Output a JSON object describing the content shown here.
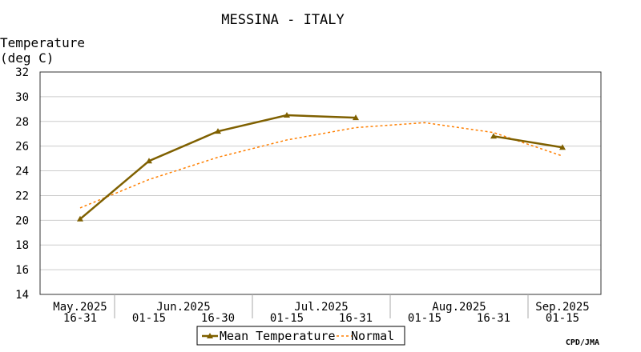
{
  "chart_data": {
    "type": "line",
    "title": "MESSINA - ITALY",
    "ylabel_line1": "Temperature",
    "ylabel_line2": "(deg C)",
    "ylim": [
      14,
      32
    ],
    "yticks": [
      14,
      16,
      18,
      20,
      22,
      24,
      26,
      28,
      30,
      32
    ],
    "x_periods": [
      "2025-05-16/31",
      "2025-06-01/15",
      "2025-06-16/30",
      "2025-07-01/15",
      "2025-07-16/31",
      "2025-08-01/15",
      "2025-08-16/31",
      "2025-09-01/15"
    ],
    "month_labels": [
      {
        "label": "May.2025",
        "period_index": 0
      },
      {
        "label": "Jun.2025",
        "period_index": 1.5
      },
      {
        "label": "Jul.2025",
        "period_index": 3.5
      },
      {
        "label": "Aug.2025",
        "period_index": 5.5
      },
      {
        "label": "Sep.2025",
        "period_index": 7
      }
    ],
    "half_labels": [
      "16-31",
      "01-15",
      "16-30",
      "01-15",
      "16-31",
      "01-15",
      "16-31",
      "01-15"
    ],
    "month_boundaries_after_period": [
      0,
      2,
      4,
      6
    ],
    "grid": true,
    "series": [
      {
        "name": "Mean Temperature",
        "color": "#7f6000",
        "style": "solid-triangle",
        "segments": [
          [
            [
              0,
              20.1
            ],
            [
              1,
              24.8
            ],
            [
              2,
              27.2
            ],
            [
              3,
              28.5
            ],
            [
              4,
              28.3
            ]
          ],
          [
            [
              6,
              26.8
            ],
            [
              7,
              25.9
            ]
          ]
        ]
      },
      {
        "name": "Normal",
        "color": "#ff7f00",
        "style": "dashed",
        "points": [
          [
            0,
            21.0
          ],
          [
            1,
            23.3
          ],
          [
            2,
            25.1
          ],
          [
            3,
            26.5
          ],
          [
            4,
            27.5
          ],
          [
            5,
            27.9
          ],
          [
            6,
            27.1
          ],
          [
            7,
            25.2
          ]
        ]
      }
    ],
    "legend_position": "bottom-center",
    "source": "CPD/JMA"
  }
}
